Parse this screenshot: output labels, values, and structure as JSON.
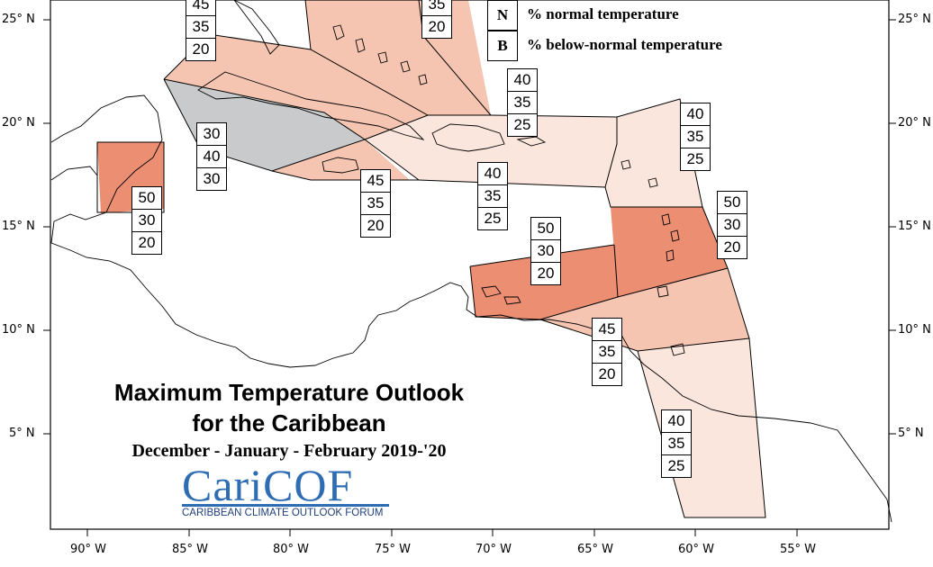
{
  "colors": {
    "above_60_50": "#eb8e72",
    "above_45": "#f5c5b1",
    "above_40": "#fbe6dd",
    "normal_40": "#c8cacc",
    "coast": "#000000"
  },
  "latitude_labels": [
    "25° N",
    "20° N",
    "15° N",
    "10° N",
    "5° N"
  ],
  "longitude_labels": [
    "90° W",
    "85° W",
    "80° W",
    "75° W",
    "70° W",
    "65° W",
    "60° W",
    "55° W"
  ],
  "legend": [
    {
      "key": "N",
      "text": "% normal temperature"
    },
    {
      "key": "B",
      "text": "% below-normal temperature"
    }
  ],
  "title": {
    "line1": "Maximum Temperature Outlook",
    "line2": "for the Caribbean",
    "season": "December - January - February 2019-'20"
  },
  "logo": {
    "name": "CariCOF",
    "tagline": "CARIBBEAN CLIMATE OUTLOOK FORUM"
  },
  "probability_boxes": [
    {
      "region": "bahamas-north-west",
      "values": [
        "45",
        "35",
        "20"
      ]
    },
    {
      "region": "bahamas-south-east",
      "values": [
        "35",
        "20"
      ]
    },
    {
      "region": "cayman-belize-channel",
      "values": [
        "30",
        "40",
        "30"
      ]
    },
    {
      "region": "belize",
      "values": [
        "50",
        "30",
        "20"
      ]
    },
    {
      "region": "jamaica",
      "values": [
        "45",
        "35",
        "20"
      ]
    },
    {
      "region": "hispaniola",
      "values": [
        "40",
        "35",
        "25"
      ]
    },
    {
      "region": "turks-caicos",
      "values": [
        "40",
        "35",
        "25"
      ]
    },
    {
      "region": "leeward-islands",
      "values": [
        "40",
        "35",
        "25"
      ]
    },
    {
      "region": "windward-islands",
      "values": [
        "50",
        "30",
        "20"
      ]
    },
    {
      "region": "abc-islands",
      "values": [
        "50",
        "30",
        "20"
      ]
    },
    {
      "region": "trinidad-tobago",
      "values": [
        "45",
        "35",
        "20"
      ]
    },
    {
      "region": "guianas",
      "values": [
        "40",
        "35",
        "25"
      ]
    }
  ]
}
